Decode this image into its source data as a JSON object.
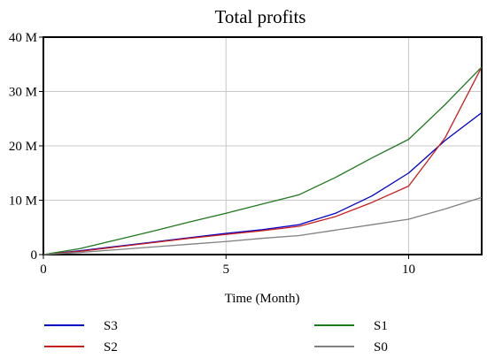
{
  "chart_data": {
    "type": "line",
    "title": "Total profits",
    "xlabel": "Time (Month)",
    "ylabel": "",
    "xlim": [
      0,
      12
    ],
    "ylim": [
      0,
      40
    ],
    "x_ticks": [
      0,
      5,
      10
    ],
    "x_tick_labels": [
      "0",
      "5",
      "10"
    ],
    "y_ticks": [
      0,
      10,
      20,
      30,
      40
    ],
    "y_tick_labels": [
      "0",
      "10 M",
      "20 M",
      "30 M",
      "40 M"
    ],
    "grid": true,
    "legend_position": "bottom",
    "x": [
      0,
      1,
      2,
      3,
      4,
      5,
      6,
      7,
      8,
      9,
      10,
      11,
      12
    ],
    "series": [
      {
        "name": "S3",
        "color": "#0000c8",
        "values": [
          0,
          0.7,
          1.5,
          2.3,
          3.1,
          3.9,
          4.6,
          5.5,
          7.6,
          10.8,
          15.0,
          21.0,
          26.1
        ]
      },
      {
        "name": "S2",
        "color": "#c81e1e",
        "values": [
          0,
          0.6,
          1.4,
          2.2,
          3.0,
          3.7,
          4.4,
          5.2,
          7.0,
          9.6,
          12.6,
          21.5,
          34.5
        ]
      },
      {
        "name": "S1",
        "color": "#1e781e",
        "values": [
          0,
          1.1,
          2.7,
          4.3,
          6.0,
          7.6,
          9.3,
          11.0,
          14.2,
          17.8,
          21.2,
          27.6,
          34.5
        ]
      },
      {
        "name": "S0",
        "color": "#808080",
        "values": [
          0,
          0.4,
          0.9,
          1.4,
          1.9,
          2.4,
          3.0,
          3.5,
          4.5,
          5.5,
          6.5,
          8.4,
          10.5
        ]
      }
    ]
  }
}
